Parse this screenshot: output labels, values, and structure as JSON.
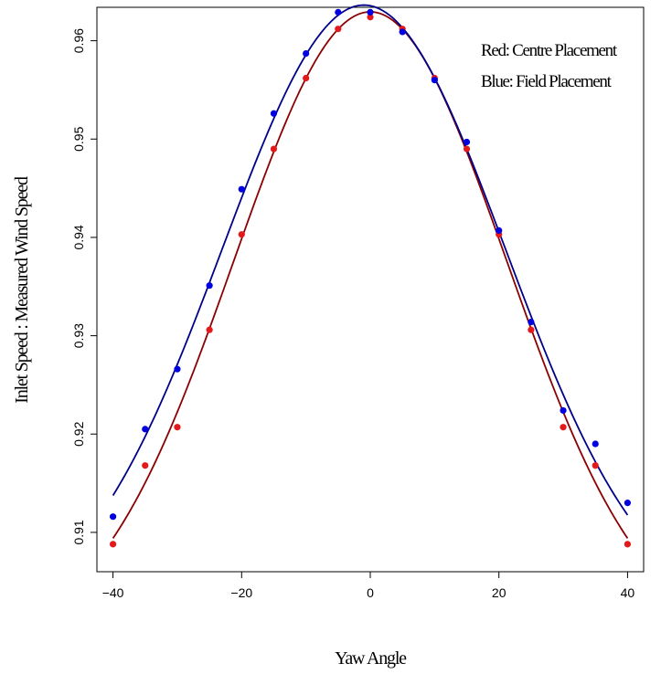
{
  "chart_data": {
    "type": "scatter",
    "xlabel": "Yaw Angle",
    "ylabel": "Inlet Speed : Measured Wind Speed",
    "xlim": [
      -42.5,
      42.5
    ],
    "ylim": [
      0.906,
      0.9634
    ],
    "x_ticks": [
      "−40",
      "−20",
      "0",
      "20",
      "40"
    ],
    "x_tick_values": [
      -40,
      -20,
      0,
      20,
      40
    ],
    "y_ticks": [
      "0.91",
      "0.92",
      "0.93",
      "0.94",
      "0.95",
      "0.96"
    ],
    "y_tick_values": [
      0.91,
      0.92,
      0.93,
      0.94,
      0.95,
      0.96
    ],
    "grid": false,
    "legend_placement": "top-right",
    "annotations": [
      "Red: Centre Placement",
      "Blue: Field Placement"
    ],
    "series": [
      {
        "color": "#e31a1c",
        "curve_color": "#8b0000",
        "points": [
          [
            -40,
            0.9088
          ],
          [
            -35,
            0.9168
          ],
          [
            -30,
            0.9207
          ],
          [
            -25,
            0.9306
          ],
          [
            -20,
            0.9403
          ],
          [
            -15,
            0.949
          ],
          [
            -10,
            0.9562
          ],
          [
            -5,
            0.9612
          ],
          [
            0,
            0.9624
          ],
          [
            5,
            0.9612
          ],
          [
            10,
            0.9562
          ],
          [
            15,
            0.949
          ],
          [
            20,
            0.9403
          ],
          [
            25,
            0.9306
          ],
          [
            30,
            0.9207
          ],
          [
            35,
            0.9168
          ],
          [
            40,
            0.9088
          ]
        ]
      },
      {
        "color": "#0000e0",
        "curve_color": "#00008b",
        "points": [
          [
            -40,
            0.9116
          ],
          [
            -35,
            0.9205
          ],
          [
            -30,
            0.9266
          ],
          [
            -25,
            0.9351
          ],
          [
            -20,
            0.9449
          ],
          [
            -15,
            0.9526
          ],
          [
            -10,
            0.9587
          ],
          [
            -5,
            0.9629
          ],
          [
            0,
            0.9629
          ],
          [
            5,
            0.9609
          ],
          [
            10,
            0.956
          ],
          [
            15,
            0.9497
          ],
          [
            20,
            0.9407
          ],
          [
            25,
            0.9314
          ],
          [
            30,
            0.9224
          ],
          [
            35,
            0.919
          ],
          [
            40,
            0.913
          ]
        ]
      }
    ]
  }
}
